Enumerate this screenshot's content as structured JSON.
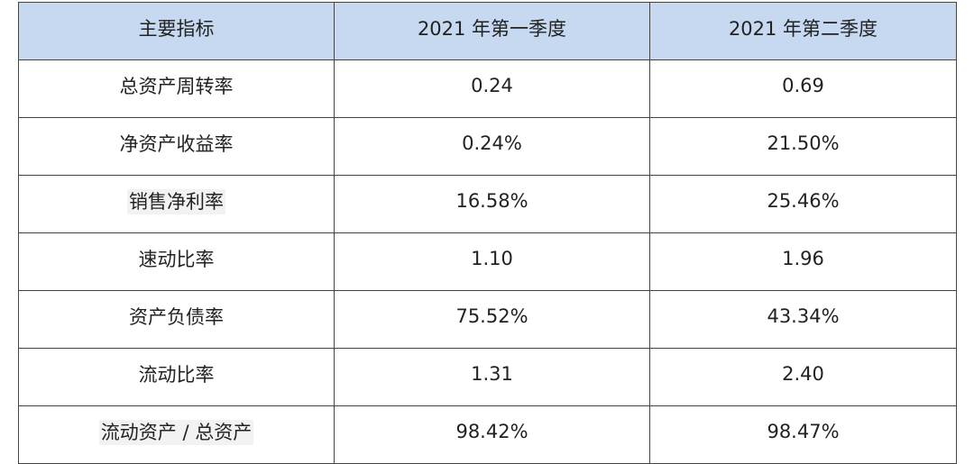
{
  "table": {
    "header": [
      "主要指标",
      "2021 年第一季度",
      "2021 年第二季度"
    ],
    "rows": [
      [
        "总资产周转率",
        "0.24",
        "0.69"
      ],
      [
        "净资产收益率",
        "0.24%",
        "21.50%"
      ],
      [
        "销售净利率",
        "16.58%",
        "25.46%"
      ],
      [
        "速动比率",
        "1.10",
        "1.96"
      ],
      [
        "资产负债率",
        "75.52%",
        "43.34%"
      ],
      [
        "流动比率",
        "1.31",
        "2.40"
      ],
      [
        "流动资产 / 总资产",
        "98.42%",
        "98.47%"
      ]
    ]
  }
}
